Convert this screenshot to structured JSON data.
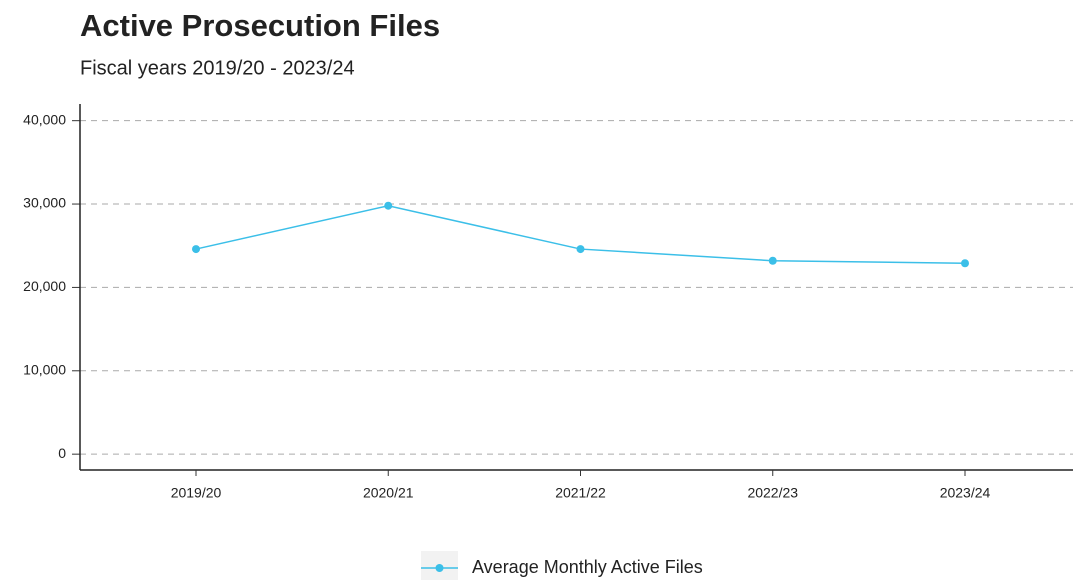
{
  "chart_data": {
    "type": "line",
    "title": "Active Prosecution Files",
    "subtitle": "Fiscal years 2019/20 - 2023/24",
    "categories": [
      "2019/20",
      "2020/21",
      "2021/22",
      "2022/23",
      "2023/24"
    ],
    "series": [
      {
        "name": "Average Monthly Active Files",
        "color": "#3bbfe8",
        "values": [
          24600,
          29800,
          24600,
          23200,
          22900
        ]
      }
    ],
    "ylim": [
      -1900,
      42000
    ],
    "yticks": [
      0,
      {
        "value": 10000,
        "label": "10,000"
      },
      {
        "value": 20000,
        "label": "20,000"
      },
      {
        "value": 30000,
        "label": "30,000"
      },
      {
        "value": 40000,
        "label": "40,000"
      }
    ],
    "grid": true,
    "legend": "bottom"
  }
}
